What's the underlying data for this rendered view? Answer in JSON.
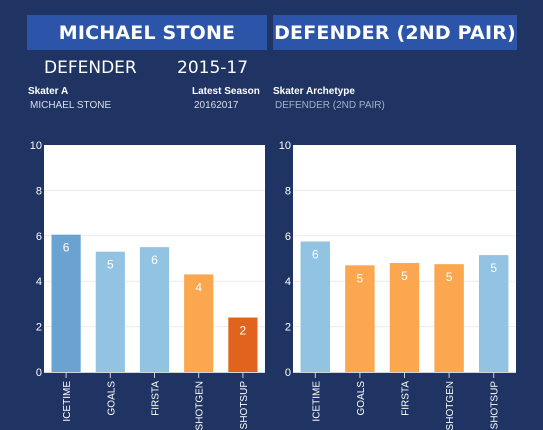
{
  "header": {
    "player_name": "MICHAEL STONE",
    "archetype_title": "DEFENDER (2ND PAIR)",
    "position": "DEFENDER",
    "season": "2015-17"
  },
  "meta": {
    "skater_label": "Skater A",
    "skater_value": "MICHAEL STONE",
    "season_label": "Latest Season",
    "season_value": "20162017",
    "archetype_label": "Skater Archetype",
    "archetype_value": "DEFENDER (2ND PAIR)"
  },
  "colors": {
    "background": "#1f3463",
    "banner": "#2c54a8",
    "dark_blue": "#6aa3d1",
    "light_blue": "#92c3e3",
    "orange": "#faa74f",
    "dark_orange": "#e0641e"
  },
  "chart_data": [
    {
      "type": "bar",
      "categories": [
        "ICETIME",
        "GOALS",
        "FIRSTA",
        "SHOTGEN",
        "SHOTSUP"
      ],
      "values": [
        6.05,
        5.3,
        5.5,
        4.3,
        2.4
      ],
      "labels": [
        "6",
        "5",
        "6",
        "4",
        "2"
      ],
      "colors": [
        "#6aa3d1",
        "#92c3e3",
        "#92c3e3",
        "#faa74f",
        "#e0641e"
      ],
      "ylim": [
        0,
        10
      ],
      "yticks": [
        0,
        2,
        4,
        6,
        8,
        10
      ],
      "grid": true
    },
    {
      "type": "bar",
      "categories": [
        "ICETIME",
        "GOALS",
        "FIRSTA",
        "SHOTGEN",
        "SHOTSUP"
      ],
      "values": [
        5.75,
        4.7,
        4.8,
        4.75,
        5.15
      ],
      "labels": [
        "6",
        "5",
        "5",
        "5",
        "5"
      ],
      "colors": [
        "#92c3e3",
        "#faa74f",
        "#faa74f",
        "#faa74f",
        "#92c3e3"
      ],
      "ylim": [
        0,
        10
      ],
      "yticks": [
        0,
        2,
        4,
        6,
        8,
        10
      ],
      "grid": true
    }
  ]
}
